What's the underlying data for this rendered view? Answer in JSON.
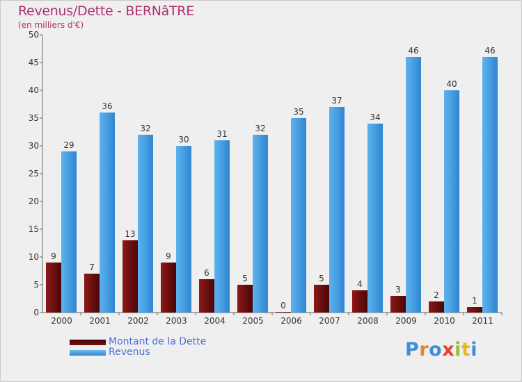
{
  "chart_data": {
    "type": "bar",
    "title": "Revenus/Dette - BERNâTRE",
    "subtitle": "(en milliers d'€)",
    "categories": [
      "2000",
      "2001",
      "2002",
      "2003",
      "2004",
      "2005",
      "2006",
      "2007",
      "2008",
      "2009",
      "2010",
      "2011"
    ],
    "series": [
      {
        "name": "Montant de la Dette",
        "color": "#7a1010",
        "values": [
          9,
          7,
          13,
          9,
          6,
          5,
          0,
          5,
          4,
          3,
          2,
          1
        ]
      },
      {
        "name": "Revenus",
        "color": "#4aa3e8",
        "values": [
          29,
          36,
          32,
          30,
          31,
          32,
          35,
          37,
          34,
          46,
          40,
          46
        ]
      }
    ],
    "ylim": [
      0,
      50
    ],
    "yticks": [
      0,
      5,
      10,
      15,
      20,
      25,
      30,
      35,
      40,
      45,
      50
    ],
    "grid": false,
    "legend": "bottom-left"
  },
  "logo": {
    "text": "Proxiti",
    "colors": [
      "#3f8fd8",
      "#e8872a",
      "#3f8fd8",
      "#e8402a",
      "#8fc23a",
      "#e8b52a",
      "#3f8fd8"
    ]
  }
}
